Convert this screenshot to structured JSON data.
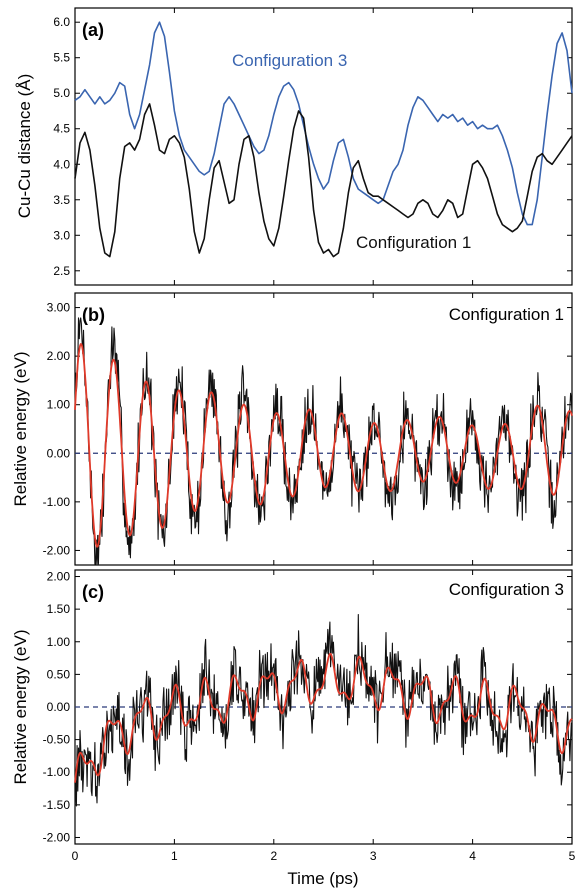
{
  "colors": {
    "black": "#111111",
    "blue": "#3a65b0",
    "red": "#e03a2a",
    "zero_line": "#2a3a7a"
  },
  "chart_data": [
    {
      "type": "line",
      "panel_label": "(a)",
      "ylabel": "Cu-Cu distance (Å)",
      "xlabel": "",
      "xlim": [
        0,
        5
      ],
      "ylim": [
        2.3,
        6.2
      ],
      "yticks": [
        "2.5",
        "3.0",
        "3.5",
        "4.0",
        "4.5",
        "5.0",
        "5.5",
        "6.0"
      ],
      "xticks": [
        "0",
        "1",
        "2",
        "3",
        "4",
        "5"
      ],
      "grid": false,
      "series": [
        {
          "name": "Configuration 3",
          "color": "#3a65b0",
          "x": [
            0,
            0.05,
            0.1,
            0.15,
            0.2,
            0.25,
            0.3,
            0.35,
            0.4,
            0.45,
            0.5,
            0.55,
            0.6,
            0.65,
            0.7,
            0.75,
            0.8,
            0.85,
            0.9,
            0.95,
            1.0,
            1.05,
            1.1,
            1.15,
            1.2,
            1.25,
            1.3,
            1.35,
            1.4,
            1.45,
            1.5,
            1.55,
            1.6,
            1.65,
            1.7,
            1.75,
            1.8,
            1.85,
            1.9,
            1.95,
            2.0,
            2.05,
            2.1,
            2.15,
            2.2,
            2.25,
            2.3,
            2.35,
            2.4,
            2.45,
            2.5,
            2.55,
            2.6,
            2.65,
            2.7,
            2.75,
            2.8,
            2.85,
            2.9,
            2.95,
            3.0,
            3.05,
            3.1,
            3.15,
            3.2,
            3.25,
            3.3,
            3.35,
            3.4,
            3.45,
            3.5,
            3.55,
            3.6,
            3.65,
            3.7,
            3.75,
            3.8,
            3.85,
            3.9,
            3.95,
            4.0,
            4.05,
            4.1,
            4.15,
            4.2,
            4.25,
            4.3,
            4.35,
            4.4,
            4.45,
            4.5,
            4.55,
            4.6,
            4.65,
            4.7,
            4.75,
            4.8,
            4.85,
            4.9,
            4.95,
            5.0
          ],
          "y": [
            4.9,
            4.95,
            5.05,
            4.95,
            4.85,
            4.95,
            4.85,
            4.9,
            5.0,
            5.15,
            5.1,
            4.7,
            4.5,
            4.7,
            5.05,
            5.4,
            5.85,
            6.0,
            5.8,
            5.3,
            4.75,
            4.4,
            4.2,
            4.1,
            4.0,
            3.9,
            3.85,
            3.9,
            4.15,
            4.5,
            4.85,
            4.95,
            4.85,
            4.7,
            4.55,
            4.4,
            4.25,
            4.15,
            4.2,
            4.4,
            4.7,
            4.95,
            5.1,
            5.15,
            5.05,
            4.85,
            4.55,
            4.25,
            4.0,
            3.8,
            3.65,
            3.75,
            4.05,
            4.3,
            4.35,
            4.1,
            3.8,
            3.65,
            3.6,
            3.55,
            3.5,
            3.45,
            3.5,
            3.7,
            3.9,
            4.0,
            4.2,
            4.55,
            4.8,
            4.95,
            4.9,
            4.8,
            4.7,
            4.6,
            4.7,
            4.65,
            4.7,
            4.6,
            4.65,
            4.55,
            4.6,
            4.5,
            4.55,
            4.5,
            4.5,
            4.55,
            4.4,
            4.2,
            3.95,
            3.6,
            3.3,
            3.15,
            3.15,
            3.5,
            4.1,
            4.7,
            5.25,
            5.7,
            5.85,
            5.6,
            5.0
          ]
        },
        {
          "name": "Configuration 1",
          "color": "#111111",
          "x": [
            0,
            0.05,
            0.1,
            0.15,
            0.2,
            0.25,
            0.3,
            0.35,
            0.4,
            0.45,
            0.5,
            0.55,
            0.6,
            0.65,
            0.7,
            0.75,
            0.8,
            0.85,
            0.9,
            0.95,
            1.0,
            1.05,
            1.1,
            1.15,
            1.2,
            1.25,
            1.3,
            1.35,
            1.4,
            1.45,
            1.5,
            1.55,
            1.6,
            1.65,
            1.7,
            1.75,
            1.8,
            1.85,
            1.9,
            1.95,
            2.0,
            2.05,
            2.1,
            2.15,
            2.2,
            2.25,
            2.3,
            2.35,
            2.4,
            2.45,
            2.5,
            2.55,
            2.6,
            2.65,
            2.7,
            2.75,
            2.8,
            2.85,
            2.9,
            2.95,
            3.0,
            3.05,
            3.1,
            3.15,
            3.2,
            3.25,
            3.3,
            3.35,
            3.4,
            3.45,
            3.5,
            3.55,
            3.6,
            3.65,
            3.7,
            3.75,
            3.8,
            3.85,
            3.9,
            3.95,
            4.0,
            4.05,
            4.1,
            4.15,
            4.2,
            4.25,
            4.3,
            4.35,
            4.4,
            4.45,
            4.5,
            4.55,
            4.6,
            4.65,
            4.7,
            4.75,
            4.8,
            4.85,
            4.9,
            4.95,
            5.0
          ],
          "y": [
            3.8,
            4.3,
            4.45,
            4.2,
            3.7,
            3.1,
            2.75,
            2.7,
            3.05,
            3.8,
            4.25,
            4.3,
            4.2,
            4.35,
            4.7,
            4.85,
            4.55,
            4.2,
            4.15,
            4.35,
            4.4,
            4.3,
            4.1,
            3.65,
            3.05,
            2.75,
            2.95,
            3.5,
            3.95,
            4.05,
            3.75,
            3.45,
            3.5,
            4.0,
            4.35,
            4.4,
            4.1,
            3.6,
            3.2,
            2.95,
            2.85,
            3.1,
            3.55,
            4.05,
            4.5,
            4.75,
            4.65,
            4.1,
            3.35,
            2.9,
            2.75,
            2.8,
            2.7,
            2.75,
            3.1,
            3.6,
            3.95,
            4.05,
            3.8,
            3.6,
            3.55,
            3.55,
            3.5,
            3.45,
            3.4,
            3.35,
            3.3,
            3.25,
            3.3,
            3.45,
            3.5,
            3.45,
            3.3,
            3.25,
            3.35,
            3.5,
            3.45,
            3.25,
            3.3,
            3.65,
            4.0,
            4.05,
            3.95,
            3.8,
            3.55,
            3.3,
            3.15,
            3.1,
            3.05,
            3.1,
            3.2,
            3.55,
            3.9,
            4.1,
            4.15,
            4.05,
            4.0,
            4.1,
            4.2,
            4.3,
            4.4
          ]
        }
      ],
      "annotations": [
        {
          "text": "Configuration 3",
          "color": "#3a65b0"
        },
        {
          "text": "Configuration 1",
          "color": "#111111"
        }
      ]
    },
    {
      "type": "line",
      "panel_label": "(b)",
      "title": "Configuration 1",
      "ylabel": "Relative energy (eV)",
      "xlabel": "",
      "xlim": [
        0,
        5
      ],
      "ylim": [
        -2.3,
        3.3
      ],
      "yticks": [
        "-2.00",
        "-1.00",
        "0.00",
        "1.00",
        "2.00",
        "3.00"
      ],
      "xticks": [
        "0",
        "1",
        "2",
        "3",
        "4",
        "5"
      ],
      "grid": false,
      "zero_line": true,
      "smooth": {
        "color": "#e03a2a",
        "components": [
          [
            0.09,
            1.0
          ],
          [
            0.18,
            0.03
          ],
          [
            0.4,
            0.0
          ],
          [
            0.3,
            0.0
          ]
        ],
        "freq_per_ps": 3.3,
        "phase": -0.6
      },
      "noisy": {
        "color": "#111111",
        "n": 700,
        "noise_amp": 0.55,
        "seed": 7
      }
    },
    {
      "type": "line",
      "panel_label": "(c)",
      "title": "Configuration 3",
      "ylabel": "Relative energy (eV)",
      "xlabel": "Time (ps)",
      "xlim": [
        0,
        5
      ],
      "ylim": [
        -2.1,
        2.1
      ],
      "yticks": [
        "-2.00",
        "-1.50",
        "-1.00",
        "-0.50",
        "0.00",
        "0.50",
        "1.00",
        "1.50",
        "2.00"
      ],
      "xticks": [
        "0",
        "1",
        "2",
        "3",
        "4",
        "5"
      ],
      "grid": false,
      "zero_line": true,
      "smooth": {
        "color": "#e03a2a"
      },
      "noisy": {
        "color": "#111111",
        "n": 700,
        "noise_amp": 0.42,
        "seed": 13
      }
    }
  ]
}
